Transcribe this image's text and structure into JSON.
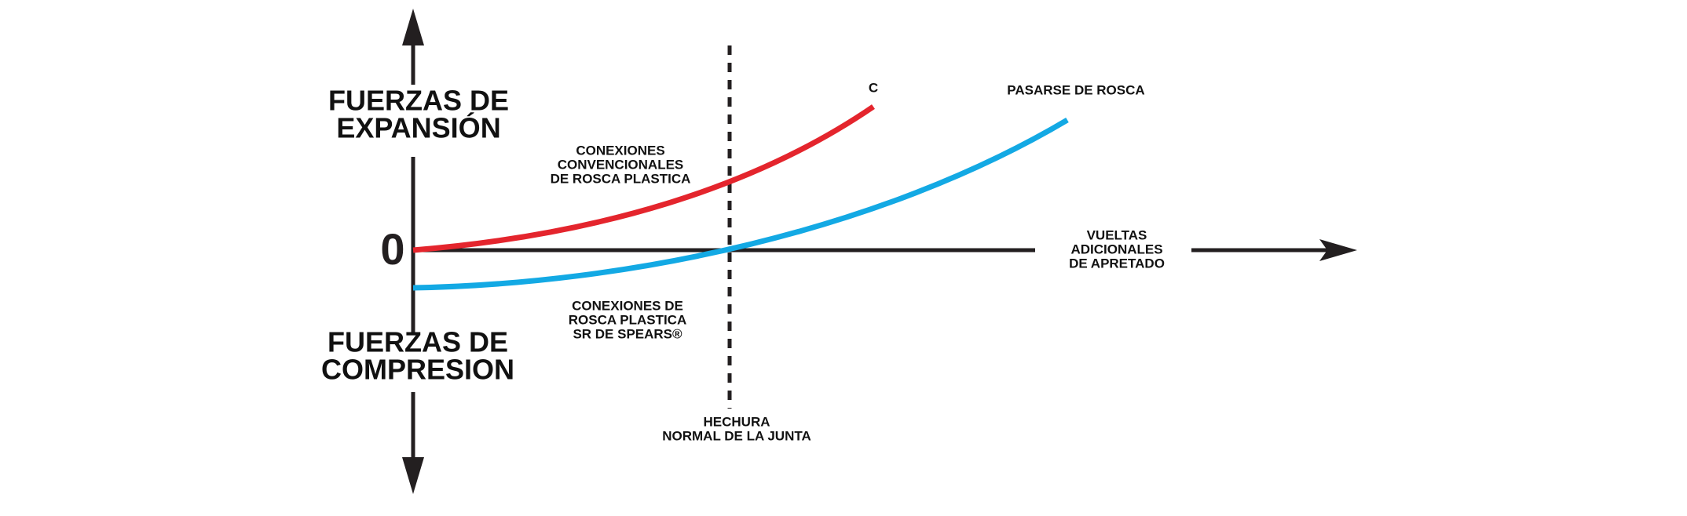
{
  "labels": {
    "expansion": [
      "FUERZAS DE",
      "EXPANSIÓN"
    ],
    "compression": [
      "FUERZAS DE",
      "COMPRESION"
    ],
    "zero": "0",
    "conventional": [
      "CONEXIONES",
      "CONVENCIONALES",
      "DE ROSCA PLASTICA"
    ],
    "spears": [
      "CONEXIONES DE",
      "ROSCA PLASTICA",
      "SR DE SPEARS®"
    ],
    "normal_joint": [
      "HECHURA",
      "NORMAL DE LA JUNTA"
    ],
    "extra_turns": [
      "VUELTAS",
      "ADICIONALES",
      "DE APRETADO"
    ],
    "curve_end_red": "C",
    "curve_end_blue": "PASARSE DE ROSCA"
  }
}
